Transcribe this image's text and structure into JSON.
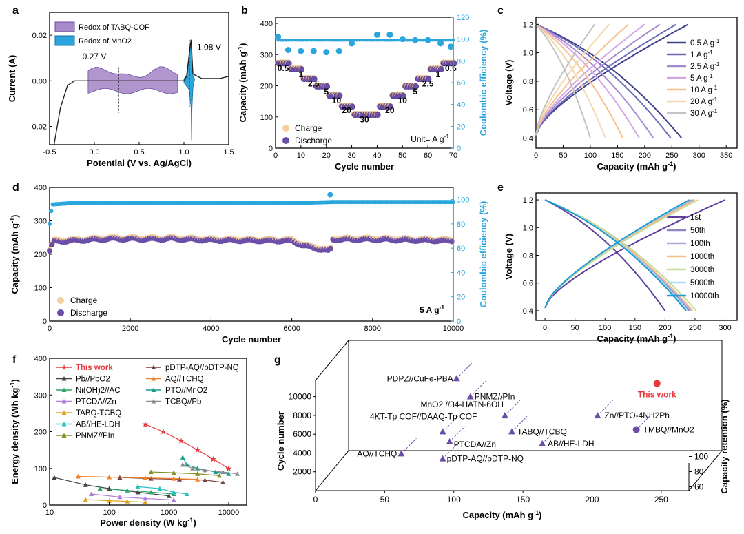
{
  "colors": {
    "blue": "#2aa6dc",
    "purple": "#6a4ea8",
    "orange": "#f4c99a",
    "violet_fill": "#a88ac8",
    "axis": "#000000",
    "red": "#e8383d"
  },
  "chart_data": [
    {
      "panel": "a",
      "type": "line",
      "xlabel": "Potential (V vs. Ag/AgCl)",
      "ylabel": "Current (A)",
      "xlim": [
        -0.5,
        1.5
      ],
      "ylim": [
        -0.028,
        0.03
      ],
      "xticks": [
        "-0.5",
        "0.0",
        "0.5",
        "1.0",
        "1.5"
      ],
      "yticks": [
        "-0.02",
        "0.00",
        "0.02"
      ],
      "legend": [
        "Redox of TABQ-COF",
        "Redox of MnO2"
      ],
      "annotations": [
        "0.27 V",
        "1.08 V"
      ],
      "curve": [
        [
          -0.45,
          -0.028
        ],
        [
          -0.38,
          -0.012
        ],
        [
          -0.3,
          -0.002
        ],
        [
          -0.22,
          0.0
        ],
        [
          0.0,
          0.0
        ],
        [
          0.5,
          0.0
        ],
        [
          1.0,
          0.0
        ],
        [
          1.03,
          0.002
        ],
        [
          1.06,
          0.012
        ],
        [
          1.08,
          0.018
        ],
        [
          1.1,
          0.003
        ],
        [
          1.2,
          0.001
        ],
        [
          1.4,
          0.001
        ],
        [
          1.5,
          0.002
        ]
      ],
      "cof_region": [
        -0.07,
        0.95
      ],
      "mno2_region": [
        1.0,
        1.12
      ]
    },
    {
      "panel": "b",
      "type": "scatter",
      "xlabel": "Cycle number",
      "ylabel": "Capacity (mAh g-1)",
      "y2label": "Coulombic efficiency (%)",
      "xlim": [
        0,
        70
      ],
      "ylim": [
        0,
        420
      ],
      "y2lim": [
        0,
        120
      ],
      "xticks": [
        "0",
        "10",
        "20",
        "30",
        "40",
        "50",
        "60",
        "70"
      ],
      "yticks": [
        "0",
        "100",
        "200",
        "300",
        "400"
      ],
      "y2ticks": [
        "0",
        "20",
        "40",
        "60",
        "80",
        "100",
        "120"
      ],
      "legend": [
        "Charge",
        "Discharge"
      ],
      "unit_note": "Unit= A g-1",
      "rate_labels": [
        "0.5",
        "1",
        "2.5",
        "5",
        "10",
        "20",
        "30",
        "20",
        "10",
        "5",
        "2.5",
        "1",
        "0.5"
      ],
      "capacity_steps": [
        [
          1,
          5,
          272
        ],
        [
          6,
          10,
          253
        ],
        [
          11,
          15,
          222
        ],
        [
          16,
          20,
          198
        ],
        [
          21,
          25,
          168
        ],
        [
          26,
          30,
          133
        ],
        [
          31,
          40,
          107
        ],
        [
          41,
          45,
          133
        ],
        [
          46,
          50,
          168
        ],
        [
          51,
          55,
          198
        ],
        [
          56,
          60,
          222
        ],
        [
          61,
          65,
          253
        ],
        [
          66,
          70,
          272
        ]
      ],
      "ce_values": [
        [
          1,
          102
        ],
        [
          5,
          90
        ],
        [
          10,
          89
        ],
        [
          15,
          89
        ],
        [
          20,
          88
        ],
        [
          25,
          89
        ],
        [
          30,
          96
        ],
        [
          40,
          104
        ],
        [
          45,
          104
        ],
        [
          50,
          100
        ],
        [
          55,
          99
        ],
        [
          60,
          99
        ],
        [
          65,
          96
        ],
        [
          69,
          93
        ]
      ]
    },
    {
      "panel": "c",
      "type": "line",
      "xlabel": "Capacity (mAh g-1)",
      "ylabel": "Voltage (V)",
      "xlim": [
        0,
        370
      ],
      "ylim": [
        0.33,
        1.25
      ],
      "xticks": [
        "0",
        "50",
        "100",
        "150",
        "200",
        "250",
        "300",
        "350"
      ],
      "yticks": [
        "0.4",
        "0.6",
        "0.8",
        "1.0",
        "1.2"
      ],
      "series": [
        {
          "name": "0.5 A g-1",
          "color": "#3c3f8c",
          "charge_cap": 280,
          "discharge_cap": 268
        },
        {
          "name": "1 A g-1",
          "color": "#6b68b5",
          "charge_cap": 258,
          "discharge_cap": 248
        },
        {
          "name": "2.5 A g-1",
          "color": "#a689d1",
          "charge_cap": 228,
          "discharge_cap": 216
        },
        {
          "name": "5 A g-1",
          "color": "#d4a6e8",
          "charge_cap": 200,
          "discharge_cap": 190
        },
        {
          "name": "10 A g-1",
          "color": "#f7c08c",
          "charge_cap": 170,
          "discharge_cap": 160
        },
        {
          "name": "20 A g-1",
          "color": "#f5d7a9",
          "charge_cap": 135,
          "discharge_cap": 128
        },
        {
          "name": "30 A g-1",
          "color": "#c3c3c3",
          "charge_cap": 108,
          "discharge_cap": 100
        }
      ]
    },
    {
      "panel": "d",
      "type": "scatter",
      "xlabel": "Cycle number",
      "ylabel": "Capacity (mAh g-1)",
      "y2label": "Coulombic efficiency (%)",
      "xlim": [
        0,
        10000
      ],
      "ylim": [
        0,
        400
      ],
      "y2lim": [
        0,
        110
      ],
      "xticks": [
        "0",
        "2000",
        "4000",
        "6000",
        "8000",
        "10000"
      ],
      "yticks": [
        "0",
        "100",
        "200",
        "300",
        "400"
      ],
      "y2ticks": [
        "0",
        "20",
        "40",
        "60",
        "80",
        "100"
      ],
      "legend": [
        "Charge",
        "Discharge"
      ],
      "rate_note": "5 A g-1",
      "capacity_profile": [
        [
          0,
          210
        ],
        [
          100,
          238
        ],
        [
          500,
          240
        ],
        [
          1500,
          246
        ],
        [
          2500,
          245
        ],
        [
          3000,
          246
        ],
        [
          4000,
          242
        ],
        [
          5000,
          241
        ],
        [
          6000,
          240
        ],
        [
          6300,
          225
        ],
        [
          6700,
          215
        ],
        [
          6950,
          208
        ],
        [
          7000,
          244
        ],
        [
          8000,
          244
        ],
        [
          9000,
          242
        ],
        [
          10000,
          240
        ]
      ],
      "ce_profile": [
        [
          0,
          80
        ],
        [
          60,
          96
        ],
        [
          500,
          97
        ],
        [
          6000,
          97
        ],
        [
          7000,
          98
        ],
        [
          10000,
          98
        ]
      ],
      "ce_outlier": [
        6950,
        104
      ]
    },
    {
      "panel": "e",
      "type": "line",
      "xlabel": "Capacity (mAh g-1)",
      "ylabel": "Voltage (V)",
      "xlim": [
        -15,
        320
      ],
      "ylim": [
        0.33,
        1.25
      ],
      "xticks": [
        "0",
        "50",
        "100",
        "150",
        "200",
        "250",
        "300"
      ],
      "yticks": [
        "0.4",
        "0.6",
        "0.8",
        "1.0",
        "1.2"
      ],
      "series": [
        {
          "name": "1st",
          "color": "#5c3d9e",
          "charge_cap": 300,
          "discharge_cap": 200
        },
        {
          "name": "50th",
          "color": "#8c87c4",
          "charge_cap": 245,
          "discharge_cap": 240
        },
        {
          "name": "100th",
          "color": "#b7a6d8",
          "charge_cap": 248,
          "discharge_cap": 243
        },
        {
          "name": "1000th",
          "color": "#f2c089",
          "charge_cap": 250,
          "discharge_cap": 246
        },
        {
          "name": "3000th",
          "color": "#c5dc9a",
          "charge_cap": 255,
          "discharge_cap": 252
        },
        {
          "name": "5000th",
          "color": "#a8dcee",
          "charge_cap": 242,
          "discharge_cap": 238
        },
        {
          "name": "10000th",
          "color": "#1a9bd4",
          "charge_cap": 240,
          "discharge_cap": 235
        }
      ]
    },
    {
      "panel": "f",
      "type": "line",
      "xlabel": "Power density (W kg-1)",
      "ylabel": "Energy density (Wh kg-1)",
      "xscale": "log",
      "xlim": [
        10,
        20000
      ],
      "ylim": [
        0,
        400
      ],
      "xticks": [
        "10",
        "100",
        "1000",
        "10000"
      ],
      "yticks": [
        "0",
        "100",
        "200",
        "300",
        "400"
      ],
      "series": [
        {
          "name": "This work",
          "color": "#e8383d",
          "marker": "star",
          "points": [
            [
              400,
              220
            ],
            [
              800,
              200
            ],
            [
              1600,
              175
            ],
            [
              3000,
              150
            ],
            [
              5500,
              125
            ],
            [
              10000,
              100
            ]
          ]
        },
        {
          "name": "Pb//PbO2",
          "color": "#404040",
          "marker": "triangle",
          "points": [
            [
              12,
              75
            ],
            [
              40,
              55
            ],
            [
              100,
              45
            ],
            [
              300,
              35
            ],
            [
              1000,
              25
            ]
          ]
        },
        {
          "name": "Ni(OH)2//AC",
          "color": "#2ca66b",
          "marker": "triangle",
          "points": [
            [
              70,
              45
            ],
            [
              200,
              40
            ],
            [
              500,
              35
            ],
            [
              1200,
              30
            ]
          ]
        },
        {
          "name": "PTCDA//Zn",
          "color": "#b37ad9",
          "marker": "triangle",
          "points": [
            [
              50,
              30
            ],
            [
              150,
              22
            ],
            [
              400,
              18
            ],
            [
              1200,
              14
            ]
          ]
        },
        {
          "name": "TABQ-TCBQ",
          "color": "#e0a21c",
          "marker": "triangle",
          "points": [
            [
              40,
              15
            ],
            [
              100,
              12
            ],
            [
              200,
              10
            ],
            [
              400,
              8
            ]
          ]
        },
        {
          "name": "AB//HE-LDH",
          "color": "#29c0c4",
          "marker": "triangle",
          "points": [
            [
              300,
              50
            ],
            [
              700,
              45
            ],
            [
              1200,
              35
            ],
            [
              2000,
              30
            ]
          ]
        },
        {
          "name": "PNMZ//PIn",
          "color": "#7f8f1f",
          "marker": "triangle",
          "points": [
            [
              500,
              90
            ],
            [
              1200,
              88
            ],
            [
              3000,
              85
            ],
            [
              7000,
              80
            ]
          ]
        },
        {
          "name": "pDTP-AQ//pDTP-NQ",
          "color": "#7a3c3c",
          "marker": "triangle",
          "points": [
            [
              150,
              75
            ],
            [
              500,
              72
            ],
            [
              1500,
              70
            ],
            [
              4000,
              68
            ],
            [
              8000,
              62
            ]
          ]
        },
        {
          "name": "AQ//TCHQ",
          "color": "#f0812a",
          "marker": "triangle",
          "points": [
            [
              30,
              78
            ],
            [
              100,
              76
            ],
            [
              400,
              74
            ],
            [
              1200,
              72
            ],
            [
              3000,
              70
            ]
          ]
        },
        {
          "name": "PTO//MnO2",
          "color": "#169c8c",
          "marker": "triangle",
          "points": [
            [
              1700,
              130
            ],
            [
              2000,
              110
            ],
            [
              3000,
              100
            ],
            [
              6000,
              90
            ],
            [
              10000,
              85
            ]
          ]
        },
        {
          "name": "TCBQ//Pb",
          "color": "#8c8c8c",
          "marker": "triangle",
          "points": [
            [
              1700,
              110
            ],
            [
              2500,
              100
            ],
            [
              4000,
              95
            ],
            [
              8000,
              90
            ],
            [
              14000,
              85
            ]
          ]
        }
      ]
    },
    {
      "panel": "g",
      "type": "scatter",
      "xlabel": "Capacity (mAh g-1)",
      "ylabel": "Cycle number",
      "zlabel": "Capacity retention (%)",
      "xticks": [
        "0",
        "50",
        "100",
        "150",
        "200",
        "250"
      ],
      "yticks": [
        "2000",
        "4000",
        "6000",
        "8000",
        "10000"
      ],
      "zticks": [
        "60",
        "80",
        "100"
      ],
      "points": [
        {
          "label": "PDPZ//CuFe-PBA",
          "capacity": 95,
          "cycles": 10500
        },
        {
          "label": "PNMZ//PIn",
          "capacity": 105,
          "cycles": 8700
        },
        {
          "label": "MnO2 //34-HATN-6OH",
          "capacity": 130,
          "cycles": 6800
        },
        {
          "label": "Zn//PTO-4NH2Ph",
          "capacity": 197,
          "cycles": 6800
        },
        {
          "label": "4KT-Tp COF//DAAQ-Tp COF",
          "capacity": 85,
          "cycles": 5200
        },
        {
          "label": "TABQ//TCBQ",
          "capacity": 135,
          "cycles": 5200
        },
        {
          "label": "TMBQ//MnO2",
          "capacity": 225,
          "cycles": 5400
        },
        {
          "label": "PTCDA//Zn",
          "capacity": 90,
          "cycles": 4200
        },
        {
          "label": "AB//HE-LDH",
          "capacity": 157,
          "cycles": 4000
        },
        {
          "label": "AQ//TCHQ",
          "capacity": 55,
          "cycles": 3000
        },
        {
          "label": "pDTP-AQ//pDTP-NQ",
          "capacity": 85,
          "cycles": 2500
        },
        {
          "label": "This work",
          "capacity": 240,
          "cycles": 10000
        }
      ]
    }
  ],
  "panel_letters": [
    "a",
    "b",
    "c",
    "d",
    "e",
    "f",
    "g"
  ]
}
